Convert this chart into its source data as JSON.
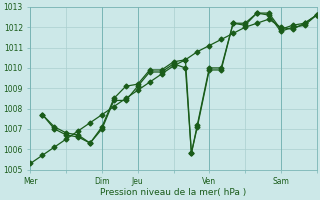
{
  "xlabel": "Pression niveau de la mer( hPa )",
  "ylim": [
    1005,
    1013
  ],
  "xlim": [
    0,
    48
  ],
  "background_color": "#cce8e8",
  "grid_color": "#aacfcf",
  "line_color": "#1a5c1a",
  "tick_labels": [
    "Mer",
    "",
    "Dim",
    "Jeu",
    "",
    "Ven",
    "",
    "Sam"
  ],
  "tick_positions": [
    0,
    6,
    12,
    18,
    24,
    30,
    36,
    42
  ],
  "major_tick_labels": [
    "Mer",
    "Dim",
    "Jeu",
    "Ven",
    "Sam"
  ],
  "major_tick_positions": [
    0,
    12,
    18,
    30,
    42
  ],
  "series1_x": [
    0,
    2,
    4,
    6,
    8,
    10,
    12,
    14,
    16,
    18,
    20,
    22,
    24,
    26,
    28,
    30,
    32,
    34,
    36,
    38,
    40,
    42,
    44,
    46,
    48
  ],
  "series1_y": [
    1005.3,
    1005.7,
    1006.1,
    1006.5,
    1006.9,
    1007.3,
    1007.7,
    1008.1,
    1008.5,
    1008.9,
    1009.3,
    1009.7,
    1010.1,
    1010.4,
    1010.8,
    1011.1,
    1011.4,
    1011.7,
    1012.0,
    1012.2,
    1012.4,
    1012.0,
    1011.9,
    1012.2,
    1012.6
  ],
  "series2_x": [
    2,
    4,
    6,
    8,
    10,
    12,
    14,
    16,
    18,
    20,
    22,
    24,
    26,
    27,
    28,
    30,
    32,
    34,
    36,
    38,
    40,
    42,
    44,
    46,
    48
  ],
  "series2_y": [
    1007.7,
    1007.1,
    1006.8,
    1006.7,
    1006.3,
    1007.1,
    1008.5,
    1009.1,
    1009.2,
    1009.9,
    1009.9,
    1010.3,
    1010.4,
    1005.8,
    1007.2,
    1010.0,
    1010.0,
    1012.2,
    1012.2,
    1012.7,
    1012.7,
    1011.9,
    1012.1,
    1012.2,
    1012.6
  ],
  "series3_x": [
    2,
    4,
    6,
    8,
    10,
    12,
    14,
    16,
    18,
    20,
    22,
    24,
    26,
    27,
    28,
    30,
    32,
    34,
    36,
    38,
    40,
    42,
    44,
    46,
    48
  ],
  "series3_y": [
    1007.7,
    1007.0,
    1006.7,
    1006.6,
    1006.3,
    1007.0,
    1008.4,
    1008.4,
    1009.1,
    1009.8,
    1009.8,
    1010.2,
    1010.0,
    1005.8,
    1007.1,
    1009.9,
    1009.9,
    1012.2,
    1012.1,
    1012.7,
    1012.6,
    1011.8,
    1012.0,
    1012.1,
    1012.6
  ],
  "ytick_labels": [
    "1005",
    "1006",
    "1007",
    "1008",
    "1009",
    "1010",
    "1011",
    "1012",
    "1013"
  ],
  "ytick_positions": [
    1005,
    1006,
    1007,
    1008,
    1009,
    1010,
    1011,
    1012,
    1013
  ]
}
